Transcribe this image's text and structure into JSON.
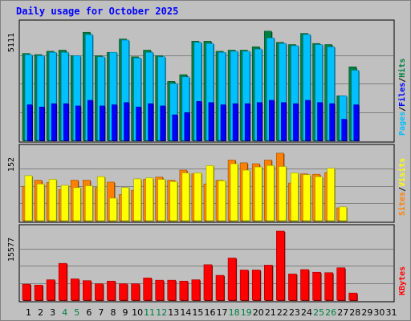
{
  "chart_data": {
    "type": "bar",
    "title": "Daily usage for October 2025",
    "categories": [
      "1",
      "2",
      "3",
      "4",
      "5",
      "6",
      "7",
      "8",
      "9",
      "10",
      "11",
      "12",
      "13",
      "14",
      "15",
      "16",
      "17",
      "18",
      "19",
      "20",
      "21",
      "22",
      "23",
      "24",
      "25",
      "26",
      "27",
      "28",
      "29",
      "30",
      "31"
    ],
    "weekend_days": [
      "4",
      "5",
      "11",
      "12",
      "18",
      "19",
      "25",
      "26"
    ],
    "panels": [
      {
        "id": "hits",
        "max_label": "5111",
        "ylim": [
          0,
          5111
        ],
        "grid": true,
        "legend": [
          "Pages",
          "/",
          "Files",
          "/",
          "Hits"
        ],
        "series": [
          {
            "name": "Hits",
            "color": "#008040",
            "values": [
              3900,
              3850,
              4000,
              4050,
              3800,
              4850,
              3800,
              3950,
              4550,
              3750,
              4050,
              3800,
              2650,
              2950,
              4450,
              4450,
              4000,
              4050,
              4050,
              4200,
              4900,
              4400,
              4300,
              4800,
              4350,
              4300,
              2000,
              3300,
              0,
              0,
              0
            ]
          },
          {
            "name": "Files",
            "color": "#00C0FF",
            "values": [
              3850,
              3800,
              3950,
              3950,
              3800,
              4750,
              3750,
              3950,
              4500,
              3700,
              3950,
              3750,
              2550,
              2850,
              4400,
              4350,
              3950,
              4000,
              4000,
              4100,
              4600,
              4350,
              4250,
              4750,
              4300,
              4200,
              2000,
              3150,
              0,
              0,
              0
            ]
          },
          {
            "name": "Pages",
            "color": "#0000FF",
            "values": [
              1600,
              1500,
              1650,
              1650,
              1550,
              1800,
              1550,
              1600,
              1700,
              1500,
              1650,
              1550,
              1150,
              1250,
              1750,
              1700,
              1600,
              1650,
              1650,
              1700,
              1800,
              1700,
              1650,
              1800,
              1700,
              1650,
              950,
              1600,
              0,
              0,
              0
            ]
          }
        ],
        "last_day_values": {
          "hits": 1,
          "files": 1
        }
      },
      {
        "id": "visits",
        "max_label": "152",
        "ylim": [
          0,
          152
        ],
        "grid": true,
        "legend": [
          "Sites",
          "/",
          "Visits"
        ],
        "series": [
          {
            "name": "Visits",
            "color": "#FF8000",
            "values": [
              75,
              88,
              83,
              68,
              88,
              88,
              72,
              84,
              57,
              66,
              90,
              95,
              88,
              110,
              102,
              80,
              88,
              132,
              126,
              124,
              132,
              147,
              82,
              102,
              101,
              105,
              28,
              0,
              0,
              0,
              0
            ]
          },
          {
            "name": "Sites",
            "color": "#FFFF00",
            "values": [
              98,
              80,
              90,
              77,
              72,
              76,
              96,
              49,
              72,
              91,
              93,
              90,
              85,
              104,
              104,
              120,
              87,
              124,
              110,
              117,
              120,
              118,
              104,
              100,
              96,
              114,
              30,
              0,
              0,
              0,
              0
            ]
          }
        ]
      },
      {
        "id": "kbytes",
        "max_label": "15577",
        "ylim": [
          0,
          15577
        ],
        "grid": true,
        "legend": [
          "KBytes"
        ],
        "series": [
          {
            "name": "KBytes",
            "color": "#FF0000",
            "values": [
              3600,
              3400,
              4600,
              8300,
              4800,
              4400,
              3700,
              4300,
              3700,
              3700,
              5000,
              4500,
              4500,
              4300,
              4600,
              8000,
              5600,
              9500,
              6800,
              6800,
              7900,
              15577,
              5900,
              6900,
              6300,
              6200,
              7300,
              1600,
              0,
              0,
              0
            ]
          }
        ]
      }
    ]
  },
  "colors": {
    "background": "#C0C0C0",
    "frame": "#000000",
    "title": "#0000FF",
    "grid": "#808080",
    "weekday_label": "#000000",
    "weekend_label": "#008040"
  }
}
